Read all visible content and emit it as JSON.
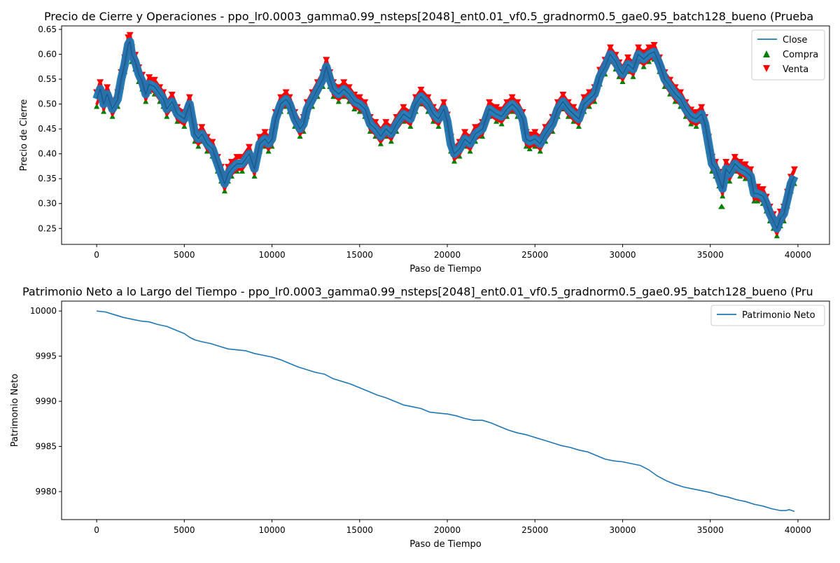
{
  "chart_data": [
    {
      "type": "line",
      "title": "Precio de Cierre y Operaciones - ppo_lr0.0003_gamma0.99_nsteps[2048]_ent0.01_vf0.5_gradnorm0.5_gae0.95_batch128_bueno (Prueba",
      "xlabel": "Paso de Tiempo",
      "ylabel": "Precio de Cierre",
      "xlim": [
        -2000,
        41800
      ],
      "ylim": [
        0.218,
        0.657
      ],
      "xticks": [
        0,
        5000,
        10000,
        15000,
        20000,
        25000,
        30000,
        35000,
        40000
      ],
      "yticks": [
        0.25,
        0.3,
        0.35,
        0.4,
        0.45,
        0.5,
        0.55,
        0.6,
        0.65
      ],
      "ytick_labels": [
        "0.25",
        "0.30",
        "0.35",
        "0.40",
        "0.45",
        "0.50",
        "0.55",
        "0.60",
        "0.65"
      ],
      "legend_position": "top-right",
      "series": [
        {
          "name": "Close",
          "color": "#1f77b4",
          "kind": "line",
          "x": [
            0,
            200,
            400,
            600,
            900,
            1200,
            1400,
            1600,
            1800,
            1900,
            2000,
            2200,
            2400,
            2600,
            2800,
            3000,
            3300,
            3600,
            3800,
            4000,
            4300,
            4600,
            5000,
            5300,
            5600,
            5800,
            6000,
            6300,
            6600,
            6900,
            7100,
            7300,
            7500,
            7700,
            8000,
            8300,
            8700,
            9000,
            9300,
            9600,
            9800,
            10000,
            10200,
            10500,
            10800,
            11000,
            11300,
            11600,
            11800,
            12000,
            12300,
            12600,
            12900,
            13100,
            13300,
            13500,
            13800,
            14100,
            14400,
            14700,
            15000,
            15300,
            15600,
            15900,
            16200,
            16500,
            16800,
            17100,
            17500,
            17900,
            18200,
            18500,
            18900,
            19200,
            19500,
            19800,
            20000,
            20200,
            20400,
            20700,
            21000,
            21300,
            21600,
            22000,
            22400,
            22800,
            23100,
            23400,
            23700,
            24000,
            24300,
            24500,
            24700,
            25000,
            25300,
            25600,
            26000,
            26300,
            26600,
            26900,
            27200,
            27500,
            27800,
            28100,
            28400,
            28700,
            29000,
            29300,
            29600,
            29800,
            30000,
            30300,
            30600,
            30900,
            31200,
            31500,
            31800,
            32100,
            32400,
            32700,
            33000,
            33300,
            33600,
            33900,
            34200,
            34500,
            34700,
            34900,
            35100,
            35300,
            35500,
            35700,
            35900,
            36100,
            36400,
            36700,
            37000,
            37300,
            37500,
            37700,
            38000,
            38200,
            38400,
            38600,
            38800,
            39000,
            39200,
            39400,
            39600,
            39800
          ],
          "values": [
            0.51,
            0.53,
            0.5,
            0.52,
            0.49,
            0.51,
            0.55,
            0.58,
            0.62,
            0.625,
            0.6,
            0.585,
            0.56,
            0.545,
            0.52,
            0.54,
            0.535,
            0.52,
            0.51,
            0.49,
            0.505,
            0.48,
            0.47,
            0.5,
            0.44,
            0.43,
            0.44,
            0.42,
            0.41,
            0.38,
            0.36,
            0.34,
            0.36,
            0.37,
            0.38,
            0.38,
            0.4,
            0.37,
            0.42,
            0.43,
            0.42,
            0.43,
            0.47,
            0.5,
            0.51,
            0.5,
            0.47,
            0.45,
            0.46,
            0.49,
            0.51,
            0.53,
            0.55,
            0.575,
            0.55,
            0.53,
            0.52,
            0.53,
            0.52,
            0.505,
            0.5,
            0.49,
            0.46,
            0.45,
            0.435,
            0.45,
            0.44,
            0.46,
            0.48,
            0.47,
            0.5,
            0.515,
            0.5,
            0.48,
            0.47,
            0.49,
            0.465,
            0.42,
            0.4,
            0.41,
            0.43,
            0.42,
            0.44,
            0.45,
            0.49,
            0.48,
            0.475,
            0.49,
            0.5,
            0.49,
            0.47,
            0.43,
            0.425,
            0.43,
            0.42,
            0.44,
            0.46,
            0.49,
            0.505,
            0.49,
            0.48,
            0.47,
            0.5,
            0.51,
            0.52,
            0.555,
            0.575,
            0.6,
            0.585,
            0.57,
            0.56,
            0.58,
            0.57,
            0.6,
            0.59,
            0.6,
            0.605,
            0.58,
            0.55,
            0.535,
            0.52,
            0.51,
            0.49,
            0.475,
            0.47,
            0.48,
            0.46,
            0.42,
            0.38,
            0.37,
            0.35,
            0.33,
            0.37,
            0.36,
            0.38,
            0.37,
            0.365,
            0.355,
            0.32,
            0.32,
            0.315,
            0.3,
            0.28,
            0.265,
            0.25,
            0.27,
            0.28,
            0.31,
            0.34,
            0.355
          ]
        },
        {
          "name": "Compra",
          "color": "#008000",
          "kind": "marker-up"
        },
        {
          "name": "Venta",
          "color": "#ff0000",
          "kind": "marker-down"
        }
      ]
    },
    {
      "type": "line",
      "title": "Patrimonio Neto a lo Largo del Tiempo - ppo_lr0.0003_gamma0.99_nsteps[2048]_ent0.01_vf0.5_gradnorm0.5_gae0.95_batch128_bueno (Pru",
      "xlabel": "Paso de Tiempo",
      "ylabel": "Patrimonio Neto",
      "xlim": [
        -2000,
        41800
      ],
      "ylim": [
        9976.9,
        10001.1
      ],
      "xticks": [
        0,
        5000,
        10000,
        15000,
        20000,
        25000,
        30000,
        35000,
        40000
      ],
      "yticks": [
        9980,
        9985,
        9990,
        9995,
        10000
      ],
      "ytick_labels": [
        "9980",
        "9985",
        "9990",
        "9995",
        "10000"
      ],
      "legend_position": "top-right",
      "series": [
        {
          "name": "Patrimonio Neto",
          "color": "#1f77b4",
          "kind": "line",
          "x": [
            0,
            500,
            1000,
            1500,
            2000,
            2500,
            3000,
            3500,
            4000,
            4500,
            5000,
            5300,
            5600,
            6000,
            6500,
            7000,
            7500,
            8000,
            8500,
            9000,
            9500,
            10000,
            10500,
            11000,
            11500,
            12000,
            12500,
            13000,
            13500,
            14000,
            14500,
            15000,
            15500,
            16000,
            16500,
            17000,
            17500,
            18000,
            18500,
            19000,
            19500,
            20000,
            20500,
            21000,
            21500,
            22000,
            22500,
            23000,
            23500,
            24000,
            24500,
            25000,
            25500,
            26000,
            26500,
            27000,
            27500,
            28000,
            28500,
            29000,
            29500,
            30000,
            30500,
            31000,
            31500,
            32000,
            32500,
            33000,
            33500,
            34000,
            34500,
            35000,
            35500,
            36000,
            36500,
            37000,
            37500,
            38000,
            38500,
            39000,
            39300,
            39500,
            39800
          ],
          "values": [
            10000,
            9999.9,
            9999.6,
            9999.3,
            9999.1,
            9998.9,
            9998.8,
            9998.5,
            9998.3,
            9997.9,
            9997.5,
            9997.1,
            9996.8,
            9996.6,
            9996.4,
            9996.1,
            9995.8,
            9995.7,
            9995.6,
            9995.3,
            9995.1,
            9994.9,
            9994.6,
            9994.2,
            9993.8,
            9993.5,
            9993.2,
            9993.0,
            9992.5,
            9992.2,
            9991.9,
            9991.5,
            9991.1,
            9990.7,
            9990.4,
            9990.0,
            9989.6,
            9989.4,
            9989.2,
            9988.8,
            9988.7,
            9988.6,
            9988.4,
            9988.1,
            9987.9,
            9987.9,
            9987.6,
            9987.2,
            9986.8,
            9986.5,
            9986.3,
            9986.0,
            9985.7,
            9985.4,
            9985.1,
            9984.9,
            9984.6,
            9984.4,
            9984.0,
            9983.6,
            9983.4,
            9983.3,
            9983.1,
            9982.9,
            9982.4,
            9981.7,
            9981.2,
            9980.8,
            9980.5,
            9980.3,
            9980.1,
            9979.9,
            9979.6,
            9979.4,
            9979.1,
            9978.9,
            9978.6,
            9978.4,
            9978.1,
            9977.9,
            9977.9,
            9978.0,
            9977.8
          ]
        }
      ]
    }
  ]
}
